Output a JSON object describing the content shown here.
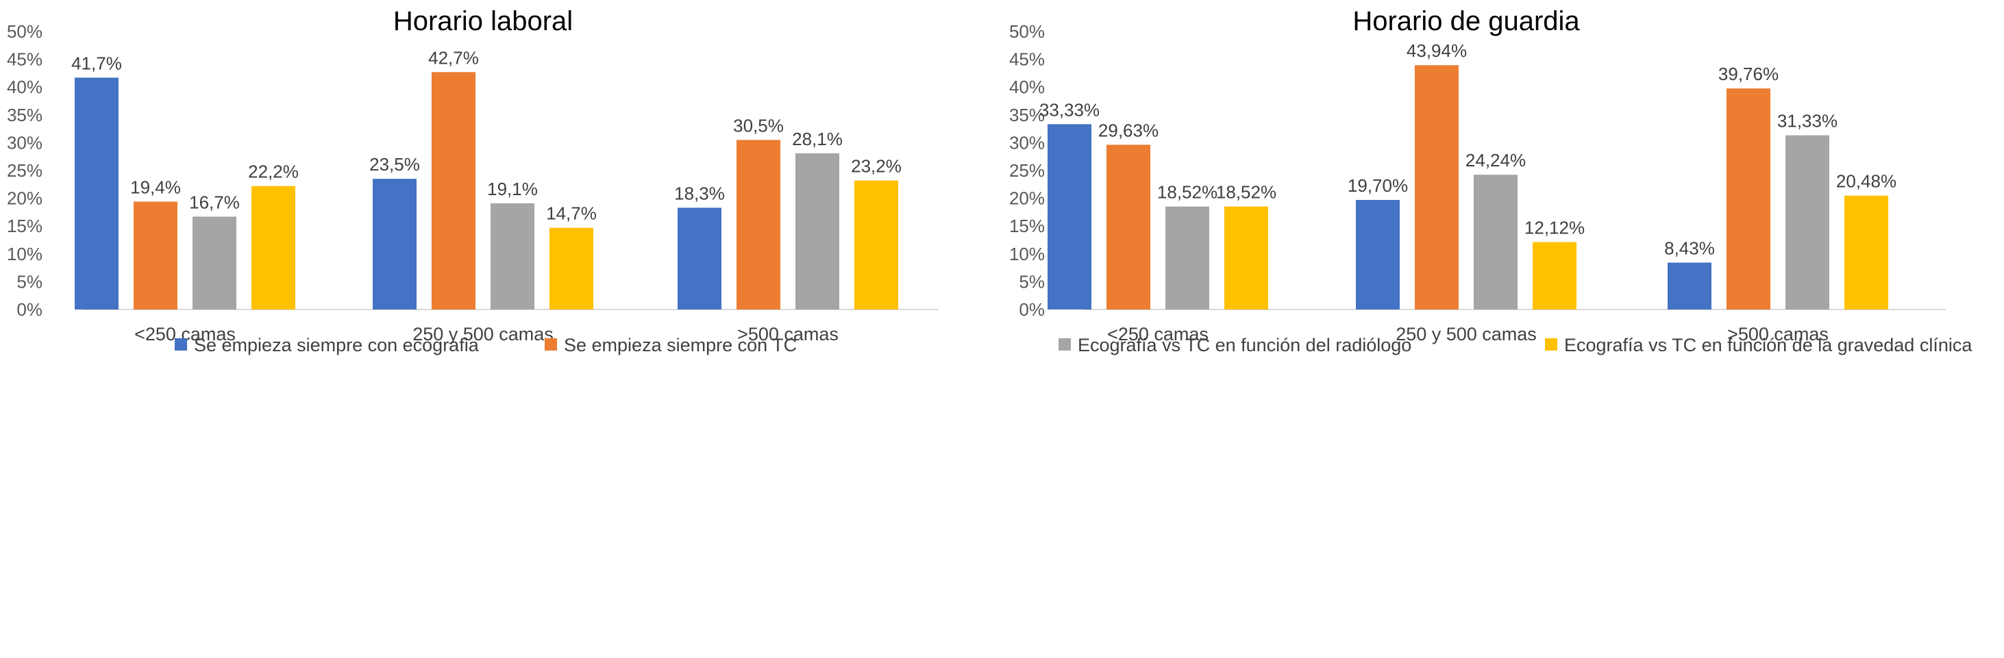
{
  "colors": {
    "blue": "#4472C4",
    "orange": "#ED7D31",
    "gray": "#A5A5A5",
    "yellow": "#FFC000"
  },
  "legend": [
    {
      "label": "Se empieza siempre con ecografia",
      "color": "#4472C4"
    },
    {
      "label": "Se empieza siempre con TC",
      "color": "#ED7D31"
    },
    {
      "label": "Ecografía vs TC en función del radiólogo",
      "color": "#A5A5A5"
    },
    {
      "label": "Ecografía vs TC en función de la gravedad clínica",
      "color": "#FFC000"
    }
  ],
  "chart_data": [
    {
      "type": "bar",
      "title": "Horario laboral",
      "categories": [
        "<250 camas",
        "250 y 500 camas",
        ">500 camas"
      ],
      "ylim": [
        0,
        50
      ],
      "yticks": [
        "0%",
        "5%",
        "10%",
        "15%",
        "20%",
        "25%",
        "30%",
        "35%",
        "40%",
        "45%",
        "50%"
      ],
      "grid": false,
      "series": [
        {
          "name": "Se empieza siempre con ecografia",
          "color": "#4472C4",
          "values": [
            41.7,
            23.5,
            18.3
          ],
          "labels": [
            "41,7%",
            "23,5%",
            "18,3%"
          ]
        },
        {
          "name": "Se empieza siempre con TC",
          "color": "#ED7D31",
          "values": [
            19.4,
            42.7,
            30.5
          ],
          "labels": [
            "19,4%",
            "42,7%",
            "30,5%"
          ]
        },
        {
          "name": "Ecografía vs TC en función del radiólogo",
          "color": "#A5A5A5",
          "values": [
            16.7,
            19.1,
            28.1
          ],
          "labels": [
            "16,7%",
            "19,1%",
            "28,1%"
          ]
        },
        {
          "name": "Ecografía vs TC en función de la gravedad clínica",
          "color": "#FFC000",
          "values": [
            22.2,
            14.7,
            23.2
          ],
          "labels": [
            "22,2%",
            "14,7%",
            "23,2%"
          ]
        }
      ]
    },
    {
      "type": "bar",
      "title": "Horario de guardia",
      "categories": [
        "<250 camas",
        "250 y 500 camas",
        ">500 camas"
      ],
      "ylim": [
        0,
        50
      ],
      "yticks": [
        "0%",
        "5%",
        "10%",
        "15%",
        "20%",
        "25%",
        "30%",
        "35%",
        "40%",
        "45%",
        "50%"
      ],
      "grid": false,
      "series": [
        {
          "name": "Se empieza siempre con ecografia",
          "color": "#4472C4",
          "values": [
            33.33,
            19.7,
            8.43
          ],
          "labels": [
            "33,33%",
            "19,70%",
            "8,43%"
          ]
        },
        {
          "name": "Se empieza siempre con TC",
          "color": "#ED7D31",
          "values": [
            29.63,
            43.94,
            39.76
          ],
          "labels": [
            "29,63%",
            "43,94%",
            "39,76%"
          ]
        },
        {
          "name": "Ecografía vs TC en función del radiólogo",
          "color": "#A5A5A5",
          "values": [
            18.52,
            24.24,
            31.33
          ],
          "labels": [
            "18,52%",
            "24,24%",
            "31,33%"
          ]
        },
        {
          "name": "Ecografía vs TC en función de la gravedad clínica",
          "color": "#FFC000",
          "values": [
            18.52,
            12.12,
            20.48
          ],
          "labels": [
            "18,52%",
            "12,12%",
            "20,48%"
          ]
        }
      ]
    }
  ]
}
